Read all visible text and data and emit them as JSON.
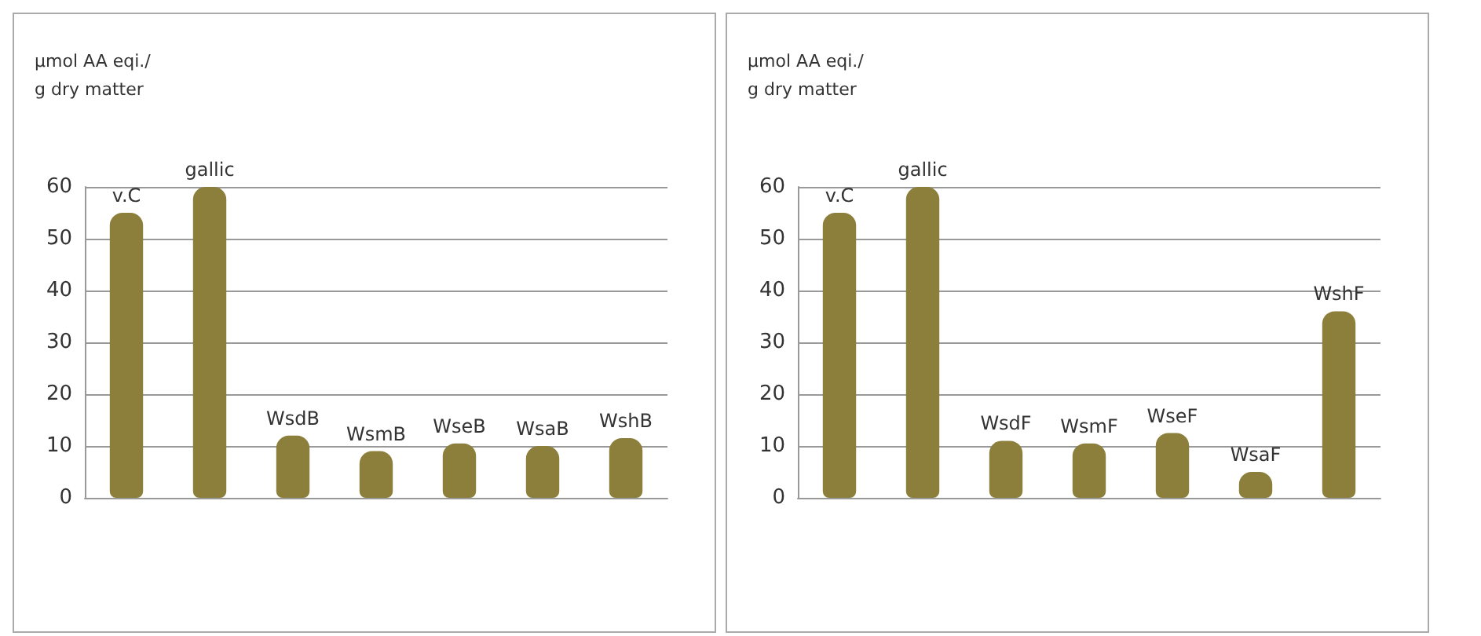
{
  "chart_data": [
    {
      "type": "bar",
      "ylabel": "µmol AA eqi./\ng dry matter",
      "categories": [
        "v.C",
        "gallic",
        "WsdB",
        "WsmB",
        "WseB",
        "WsaB",
        "WshB"
      ],
      "values": [
        55,
        60,
        12,
        9,
        10.5,
        10,
        11.5
      ],
      "color": "#8c7f3c",
      "ylim": [
        0,
        60
      ],
      "yticks": [
        0,
        10,
        20,
        30,
        40,
        50,
        60
      ],
      "grid": "y",
      "tick_labels": "y"
    },
    {
      "type": "bar",
      "ylabel": "µmol AA eqi./\ng dry matter",
      "categories": [
        "v.C",
        "gallic",
        "WsdF",
        "WsmF",
        "WseF",
        "WsaF",
        "WshF"
      ],
      "values": [
        55,
        60,
        11,
        10.5,
        12.5,
        5,
        36
      ],
      "color": "#8c7f3c",
      "ylim": [
        0,
        60
      ],
      "yticks": [
        0,
        10,
        20,
        30,
        40,
        50,
        60
      ],
      "grid": "y",
      "tick_labels": "y"
    }
  ]
}
